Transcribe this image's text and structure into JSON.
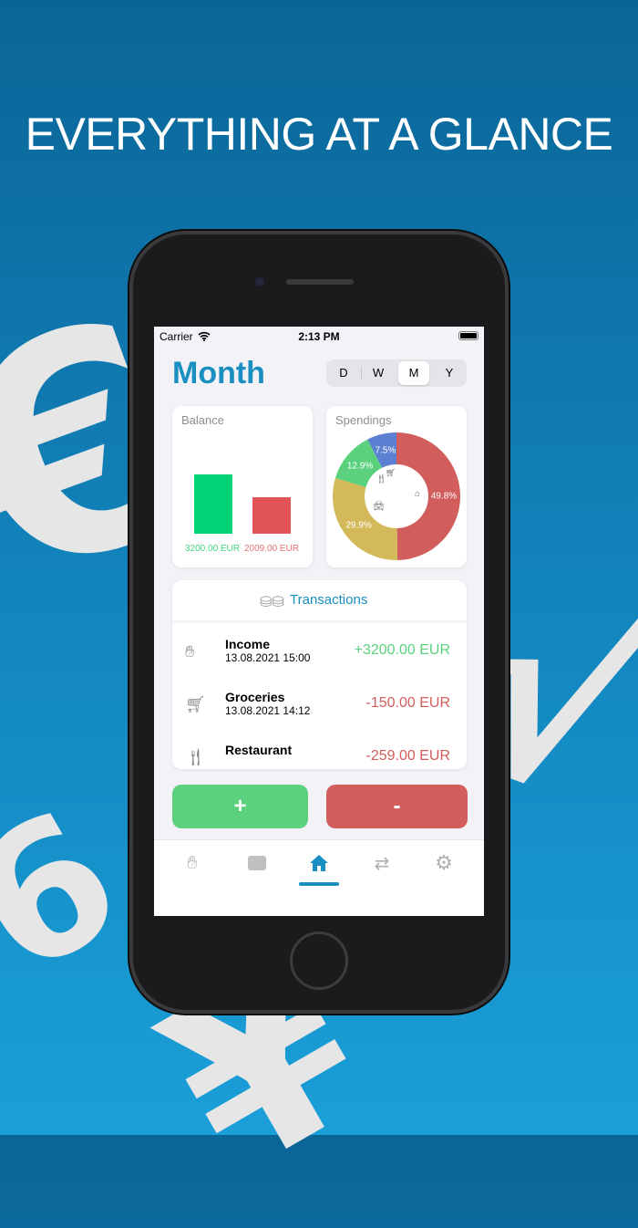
{
  "headline": "EVERYTHING AT A GLANCE",
  "status_bar": {
    "carrier": "Carrier",
    "time": "2:13 PM"
  },
  "page_title": "Month",
  "period_selector": {
    "options": [
      "D",
      "W",
      "M",
      "Y"
    ],
    "selected": "M"
  },
  "balance": {
    "title": "Balance",
    "income": 3200,
    "expense": 2009,
    "income_label": "3200.00 EUR",
    "expense_label": "2009.00 EUR",
    "colors": {
      "income": "#00d278",
      "expense": "#e05457"
    }
  },
  "spendings": {
    "title": "Spendings",
    "slices": [
      {
        "label": "49.8%",
        "value": 49.8,
        "color": "#d15e5c",
        "icon": "house-icon"
      },
      {
        "label": "29.9%",
        "value": 29.9,
        "color": "#d3b95a",
        "icon": "car-icon"
      },
      {
        "label": "12.9%",
        "value": 12.9,
        "color": "#5bd17e",
        "icon": "fork-knife-icon"
      },
      {
        "label": "7.5%",
        "value": 7.5,
        "color": "#5b80d1",
        "icon": "cart-icon"
      }
    ]
  },
  "transactions": {
    "title": "Transactions",
    "items": [
      {
        "name": "Income",
        "date": "13.08.2021 15:00",
        "amount": "+3200.00 EUR",
        "type": "income",
        "icon": "hand-coin-icon"
      },
      {
        "name": "Groceries",
        "date": "13.08.2021 14:12",
        "amount": "-150.00 EUR",
        "type": "expense",
        "icon": "cart-icon"
      },
      {
        "name": "Restaurant",
        "date": "",
        "amount": "-259.00 EUR",
        "type": "expense",
        "icon": "fork-knife-icon"
      }
    ]
  },
  "buttons": {
    "add": "+",
    "subtract": "-"
  },
  "tabs": [
    {
      "icon": "hand-coin-icon"
    },
    {
      "icon": "wallet-icon"
    },
    {
      "icon": "home-icon",
      "active": true
    },
    {
      "icon": "repeat-icon"
    },
    {
      "icon": "gear-icon"
    }
  ],
  "colors": {
    "accent": "#1a8fc1",
    "income": "#5bd17e",
    "expense": "#d15e5c"
  }
}
